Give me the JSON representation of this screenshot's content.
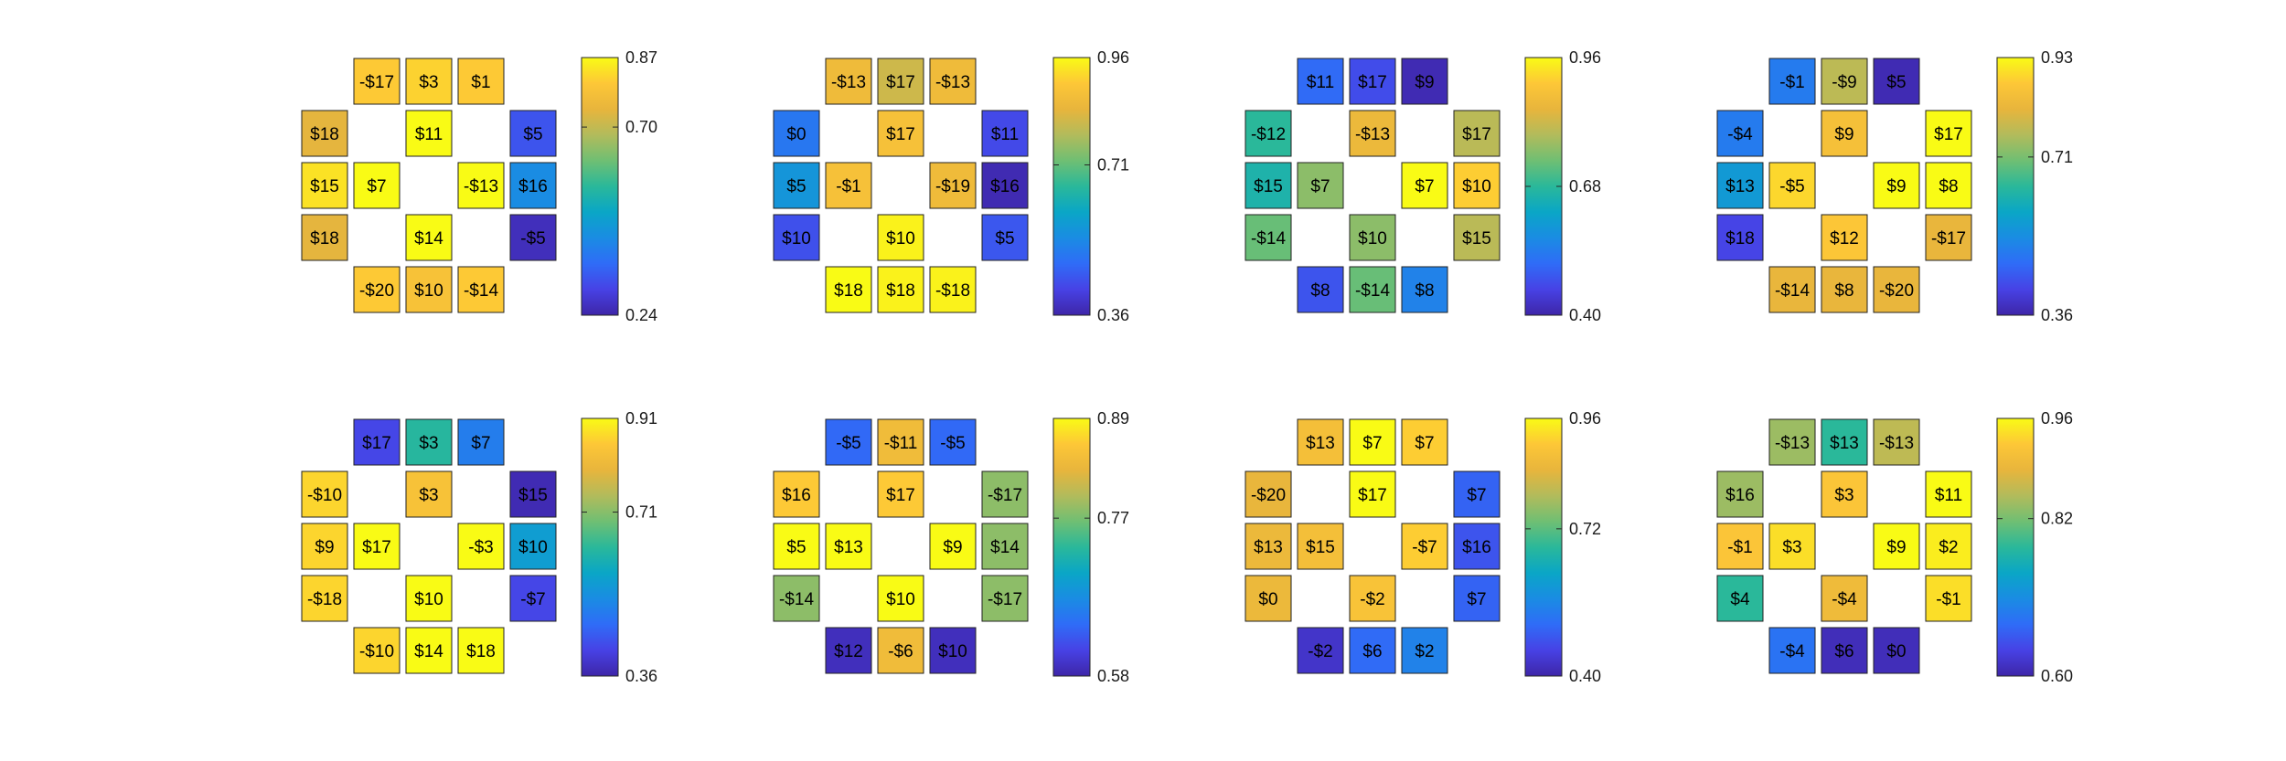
{
  "colormap": [
    "#3e26a8",
    "#4742e5",
    "#2f6cf7",
    "#1a8ce3",
    "#0aa6c6",
    "#2ab89a",
    "#6fbf73",
    "#b2bb5b",
    "#e8b53c",
    "#fdc737",
    "#f9fb15"
  ],
  "chart_data": [
    {
      "type": "heatmap",
      "cbar_ticks": [
        "0.24",
        "0.70",
        "0.87"
      ],
      "cbar_range": [
        0.24,
        0.87
      ],
      "cells": [
        {
          "r": 0,
          "c": 1,
          "label": "-$17",
          "value": 0.81
        },
        {
          "r": 0,
          "c": 2,
          "label": "$3",
          "value": 0.82
        },
        {
          "r": 0,
          "c": 3,
          "label": "$1",
          "value": 0.81
        },
        {
          "r": 1,
          "c": 0,
          "label": "$18",
          "value": 0.74
        },
        {
          "r": 1,
          "c": 2,
          "label": "$11",
          "value": 0.87
        },
        {
          "r": 1,
          "c": 4,
          "label": "$5",
          "value": 0.33
        },
        {
          "r": 2,
          "c": 0,
          "label": "$15",
          "value": 0.84
        },
        {
          "r": 2,
          "c": 1,
          "label": "$7",
          "value": 0.87
        },
        {
          "r": 2,
          "c": 3,
          "label": "-$13",
          "value": 0.87
        },
        {
          "r": 2,
          "c": 4,
          "label": "$16",
          "value": 0.43
        },
        {
          "r": 3,
          "c": 0,
          "label": "$18",
          "value": 0.74
        },
        {
          "r": 3,
          "c": 2,
          "label": "$14",
          "value": 0.87
        },
        {
          "r": 3,
          "c": 4,
          "label": "-$5",
          "value": 0.26
        },
        {
          "r": 4,
          "c": 1,
          "label": "-$20",
          "value": 0.81
        },
        {
          "r": 4,
          "c": 2,
          "label": "$10",
          "value": 0.79
        },
        {
          "r": 4,
          "c": 3,
          "label": "-$14",
          "value": 0.81
        }
      ]
    },
    {
      "type": "heatmap",
      "cbar_ticks": [
        "0.36",
        "0.71",
        "0.96"
      ],
      "cbar_range": [
        0.36,
        0.96
      ],
      "cells": [
        {
          "r": 0,
          "c": 1,
          "label": "-$13",
          "value": 0.86
        },
        {
          "r": 0,
          "c": 2,
          "label": "$17",
          "value": 0.81
        },
        {
          "r": 0,
          "c": 3,
          "label": "-$13",
          "value": 0.86
        },
        {
          "r": 1,
          "c": 0,
          "label": "$0",
          "value": 0.5
        },
        {
          "r": 1,
          "c": 2,
          "label": "$17",
          "value": 0.88
        },
        {
          "r": 1,
          "c": 4,
          "label": "$11",
          "value": 0.43
        },
        {
          "r": 2,
          "c": 0,
          "label": "$5",
          "value": 0.56
        },
        {
          "r": 2,
          "c": 1,
          "label": "-$1",
          "value": 0.88
        },
        {
          "r": 2,
          "c": 3,
          "label": "-$19",
          "value": 0.86
        },
        {
          "r": 2,
          "c": 4,
          "label": "$16",
          "value": 0.37
        },
        {
          "r": 3,
          "c": 0,
          "label": "$10",
          "value": 0.44
        },
        {
          "r": 3,
          "c": 2,
          "label": "$10",
          "value": 0.95
        },
        {
          "r": 3,
          "c": 4,
          "label": "$5",
          "value": 0.45
        },
        {
          "r": 4,
          "c": 1,
          "label": "$18",
          "value": 0.96
        },
        {
          "r": 4,
          "c": 2,
          "label": "$18",
          "value": 0.95
        },
        {
          "r": 4,
          "c": 3,
          "label": "-$18",
          "value": 0.95
        }
      ]
    },
    {
      "type": "heatmap",
      "cbar_ticks": [
        "0.40",
        "0.68",
        "0.96"
      ],
      "cbar_range": [
        0.4,
        0.96
      ],
      "cells": [
        {
          "r": 0,
          "c": 1,
          "label": "$11",
          "value": 0.51
        },
        {
          "r": 0,
          "c": 2,
          "label": "$17",
          "value": 0.47
        },
        {
          "r": 0,
          "c": 3,
          "label": "$9",
          "value": 0.41
        },
        {
          "r": 1,
          "c": 0,
          "label": "-$12",
          "value": 0.68
        },
        {
          "r": 1,
          "c": 2,
          "label": "-$13",
          "value": 0.86
        },
        {
          "r": 1,
          "c": 4,
          "label": "$17",
          "value": 0.8
        },
        {
          "r": 2,
          "c": 0,
          "label": "$15",
          "value": 0.66
        },
        {
          "r": 2,
          "c": 1,
          "label": "$7",
          "value": 0.76
        },
        {
          "r": 2,
          "c": 3,
          "label": "$7",
          "value": 0.96
        },
        {
          "r": 2,
          "c": 4,
          "label": "$10",
          "value": 0.91
        },
        {
          "r": 3,
          "c": 0,
          "label": "-$14",
          "value": 0.73
        },
        {
          "r": 3,
          "c": 2,
          "label": "$10",
          "value": 0.76
        },
        {
          "r": 3,
          "c": 4,
          "label": "$15",
          "value": 0.8
        },
        {
          "r": 4,
          "c": 1,
          "label": "$8",
          "value": 0.48
        },
        {
          "r": 4,
          "c": 2,
          "label": "-$14",
          "value": 0.73
        },
        {
          "r": 4,
          "c": 3,
          "label": "$8",
          "value": 0.55
        }
      ]
    },
    {
      "type": "heatmap",
      "cbar_ticks": [
        "0.36",
        "0.71",
        "0.93"
      ],
      "cbar_range": [
        0.36,
        0.93
      ],
      "cells": [
        {
          "r": 0,
          "c": 1,
          "label": "-$1",
          "value": 0.5
        },
        {
          "r": 0,
          "c": 2,
          "label": "-$9",
          "value": 0.77
        },
        {
          "r": 0,
          "c": 3,
          "label": "$5",
          "value": 0.37
        },
        {
          "r": 1,
          "c": 0,
          "label": "-$4",
          "value": 0.5
        },
        {
          "r": 1,
          "c": 2,
          "label": "$9",
          "value": 0.85
        },
        {
          "r": 1,
          "c": 4,
          "label": "$17",
          "value": 0.93
        },
        {
          "r": 2,
          "c": 0,
          "label": "$13",
          "value": 0.56
        },
        {
          "r": 2,
          "c": 1,
          "label": "-$5",
          "value": 0.89
        },
        {
          "r": 2,
          "c": 3,
          "label": "$9",
          "value": 0.93
        },
        {
          "r": 2,
          "c": 4,
          "label": "$8",
          "value": 0.93
        },
        {
          "r": 3,
          "c": 0,
          "label": "$18",
          "value": 0.42
        },
        {
          "r": 3,
          "c": 2,
          "label": "$12",
          "value": 0.87
        },
        {
          "r": 3,
          "c": 4,
          "label": "-$17",
          "value": 0.82
        },
        {
          "r": 4,
          "c": 1,
          "label": "-$14",
          "value": 0.82
        },
        {
          "r": 4,
          "c": 2,
          "label": "$8",
          "value": 0.82
        },
        {
          "r": 4,
          "c": 3,
          "label": "-$20",
          "value": 0.82
        }
      ]
    },
    {
      "type": "heatmap",
      "cbar_ticks": [
        "0.36",
        "0.71",
        "0.91"
      ],
      "cbar_range": [
        0.36,
        0.91
      ],
      "cells": [
        {
          "r": 0,
          "c": 1,
          "label": "$17",
          "value": 0.42
        },
        {
          "r": 0,
          "c": 2,
          "label": "$3",
          "value": 0.63
        },
        {
          "r": 0,
          "c": 3,
          "label": "$7",
          "value": 0.5
        },
        {
          "r": 1,
          "c": 0,
          "label": "-$10",
          "value": 0.87
        },
        {
          "r": 1,
          "c": 2,
          "label": "$3",
          "value": 0.84
        },
        {
          "r": 1,
          "c": 4,
          "label": "$15",
          "value": 0.37
        },
        {
          "r": 2,
          "c": 0,
          "label": "$9",
          "value": 0.87
        },
        {
          "r": 2,
          "c": 1,
          "label": "$17",
          "value": 0.91
        },
        {
          "r": 2,
          "c": 3,
          "label": "-$3",
          "value": 0.91
        },
        {
          "r": 2,
          "c": 4,
          "label": "$10",
          "value": 0.56
        },
        {
          "r": 3,
          "c": 0,
          "label": "-$18",
          "value": 0.87
        },
        {
          "r": 3,
          "c": 2,
          "label": "$10",
          "value": 0.91
        },
        {
          "r": 3,
          "c": 4,
          "label": "-$7",
          "value": 0.42
        },
        {
          "r": 4,
          "c": 1,
          "label": "-$10",
          "value": 0.87
        },
        {
          "r": 4,
          "c": 2,
          "label": "$14",
          "value": 0.91
        },
        {
          "r": 4,
          "c": 3,
          "label": "$18",
          "value": 0.91
        }
      ]
    },
    {
      "type": "heatmap",
      "cbar_ticks": [
        "0.58",
        "0.77",
        "0.89"
      ],
      "cbar_range": [
        0.58,
        0.89
      ],
      "cells": [
        {
          "r": 0,
          "c": 1,
          "label": "-$5",
          "value": 0.64
        },
        {
          "r": 0,
          "c": 2,
          "label": "-$11",
          "value": 0.84
        },
        {
          "r": 0,
          "c": 3,
          "label": "-$5",
          "value": 0.64
        },
        {
          "r": 1,
          "c": 0,
          "label": "$16",
          "value": 0.86
        },
        {
          "r": 1,
          "c": 2,
          "label": "$17",
          "value": 0.86
        },
        {
          "r": 1,
          "c": 4,
          "label": "-$17",
          "value": 0.78
        },
        {
          "r": 2,
          "c": 0,
          "label": "$5",
          "value": 0.89
        },
        {
          "r": 2,
          "c": 1,
          "label": "$13",
          "value": 0.89
        },
        {
          "r": 2,
          "c": 3,
          "label": "$9",
          "value": 0.89
        },
        {
          "r": 2,
          "c": 4,
          "label": "$14",
          "value": 0.78
        },
        {
          "r": 3,
          "c": 0,
          "label": "-$14",
          "value": 0.78
        },
        {
          "r": 3,
          "c": 2,
          "label": "$10",
          "value": 0.89
        },
        {
          "r": 3,
          "c": 4,
          "label": "-$17",
          "value": 0.78
        },
        {
          "r": 4,
          "c": 1,
          "label": "$12",
          "value": 0.59
        },
        {
          "r": 4,
          "c": 2,
          "label": "-$6",
          "value": 0.84
        },
        {
          "r": 4,
          "c": 3,
          "label": "$10",
          "value": 0.59
        }
      ]
    },
    {
      "type": "heatmap",
      "cbar_ticks": [
        "0.40",
        "0.72",
        "0.96"
      ],
      "cbar_range": [
        0.4,
        0.96
      ],
      "cells": [
        {
          "r": 0,
          "c": 1,
          "label": "$13",
          "value": 0.88
        },
        {
          "r": 0,
          "c": 2,
          "label": "$7",
          "value": 0.96
        },
        {
          "r": 0,
          "c": 3,
          "label": "$7",
          "value": 0.91
        },
        {
          "r": 1,
          "c": 0,
          "label": "-$20",
          "value": 0.85
        },
        {
          "r": 1,
          "c": 2,
          "label": "$17",
          "value": 0.96
        },
        {
          "r": 1,
          "c": 4,
          "label": "$7",
          "value": 0.5
        },
        {
          "r": 2,
          "c": 0,
          "label": "$13",
          "value": 0.86
        },
        {
          "r": 2,
          "c": 1,
          "label": "$15",
          "value": 0.88
        },
        {
          "r": 2,
          "c": 3,
          "label": "-$7",
          "value": 0.91
        },
        {
          "r": 2,
          "c": 4,
          "label": "$16",
          "value": 0.48
        },
        {
          "r": 3,
          "c": 0,
          "label": "$0",
          "value": 0.86
        },
        {
          "r": 3,
          "c": 2,
          "label": "-$2",
          "value": 0.89
        },
        {
          "r": 3,
          "c": 4,
          "label": "$7",
          "value": 0.5
        },
        {
          "r": 4,
          "c": 1,
          "label": "-$2",
          "value": 0.43
        },
        {
          "r": 4,
          "c": 2,
          "label": "$6",
          "value": 0.51
        },
        {
          "r": 4,
          "c": 3,
          "label": "$2",
          "value": 0.55
        }
      ]
    },
    {
      "type": "heatmap",
      "cbar_ticks": [
        "0.60",
        "0.82",
        "0.96"
      ],
      "cbar_range": [
        0.6,
        0.96
      ],
      "cells": [
        {
          "r": 0,
          "c": 1,
          "label": "-$13",
          "value": 0.84
        },
        {
          "r": 0,
          "c": 2,
          "label": "$13",
          "value": 0.78
        },
        {
          "r": 0,
          "c": 3,
          "label": "-$13",
          "value": 0.86
        },
        {
          "r": 1,
          "c": 0,
          "label": "$16",
          "value": 0.84
        },
        {
          "r": 1,
          "c": 2,
          "label": "$3",
          "value": 0.92
        },
        {
          "r": 1,
          "c": 4,
          "label": "$11",
          "value": 0.96
        },
        {
          "r": 2,
          "c": 0,
          "label": "-$1",
          "value": 0.92
        },
        {
          "r": 2,
          "c": 1,
          "label": "$3",
          "value": 0.94
        },
        {
          "r": 2,
          "c": 3,
          "label": "$9",
          "value": 0.96
        },
        {
          "r": 2,
          "c": 4,
          "label": "$2",
          "value": 0.95
        },
        {
          "r": 3,
          "c": 0,
          "label": "$4",
          "value": 0.78
        },
        {
          "r": 3,
          "c": 2,
          "label": "-$4",
          "value": 0.9
        },
        {
          "r": 3,
          "c": 4,
          "label": "-$1",
          "value": 0.94
        },
        {
          "r": 4,
          "c": 1,
          "label": "-$4",
          "value": 0.68
        },
        {
          "r": 4,
          "c": 2,
          "label": "$6",
          "value": 0.61
        },
        {
          "r": 4,
          "c": 3,
          "label": "$0",
          "value": 0.61
        }
      ]
    }
  ]
}
